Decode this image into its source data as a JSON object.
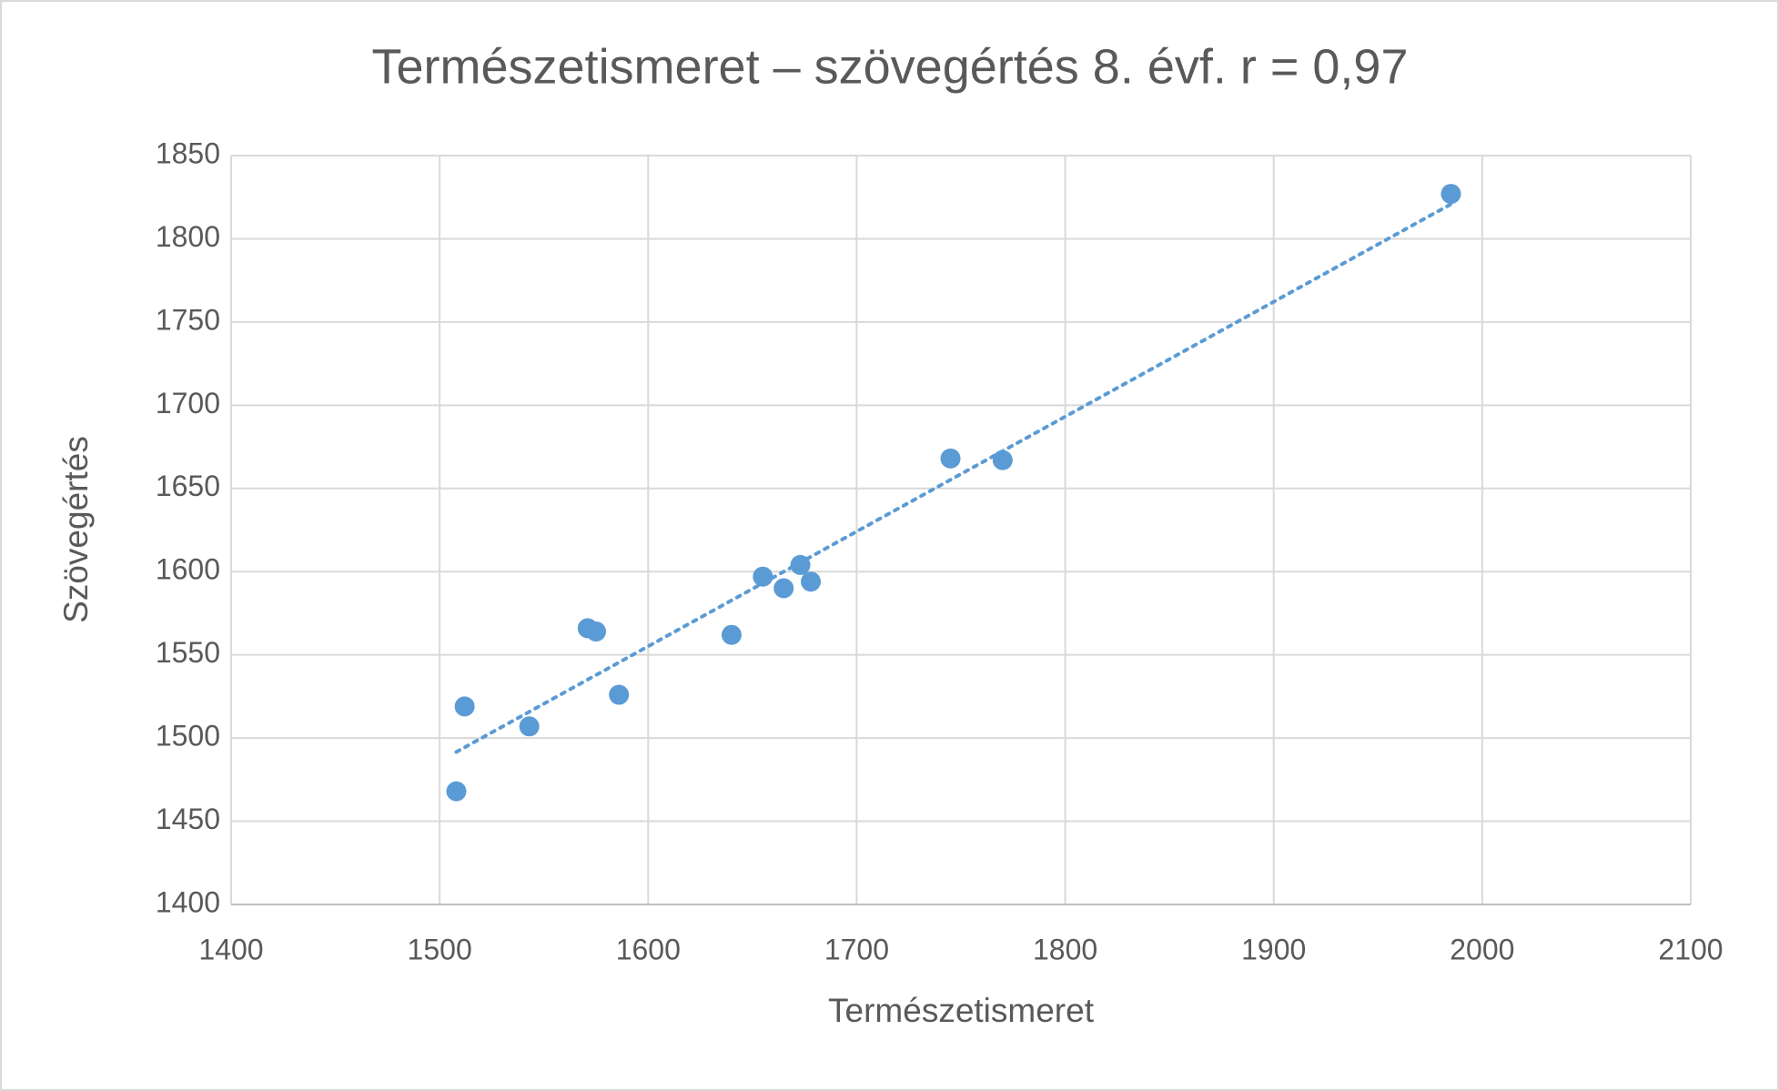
{
  "chart_data": {
    "type": "scatter",
    "title": "Természetismeret – szövegértés 8. évf. r = 0,97",
    "x_label": "Természetismeret",
    "y_label": "Szövegértés",
    "series": [
      {
        "name": "Szövegértés",
        "color": "#5b9bd5",
        "x": [
          1508,
          1512,
          1543,
          1571,
          1575,
          1586,
          1640,
          1655,
          1665,
          1673,
          1678,
          1745,
          1770,
          1985
        ],
        "values": [
          1468,
          1519,
          1507,
          1566,
          1564,
          1526,
          1562,
          1597,
          1590,
          1604,
          1594,
          1668,
          1667,
          1827
        ]
      }
    ],
    "trendline": "linear",
    "xlim": [
      1400,
      2100
    ],
    "xticks": [
      1400,
      1500,
      1600,
      1700,
      1800,
      1900,
      2000,
      2100
    ],
    "ylim": [
      1400,
      1850
    ],
    "yticks": [
      1400,
      1450,
      1500,
      1550,
      1600,
      1650,
      1700,
      1750,
      1800,
      1850
    ],
    "grid": true
  }
}
